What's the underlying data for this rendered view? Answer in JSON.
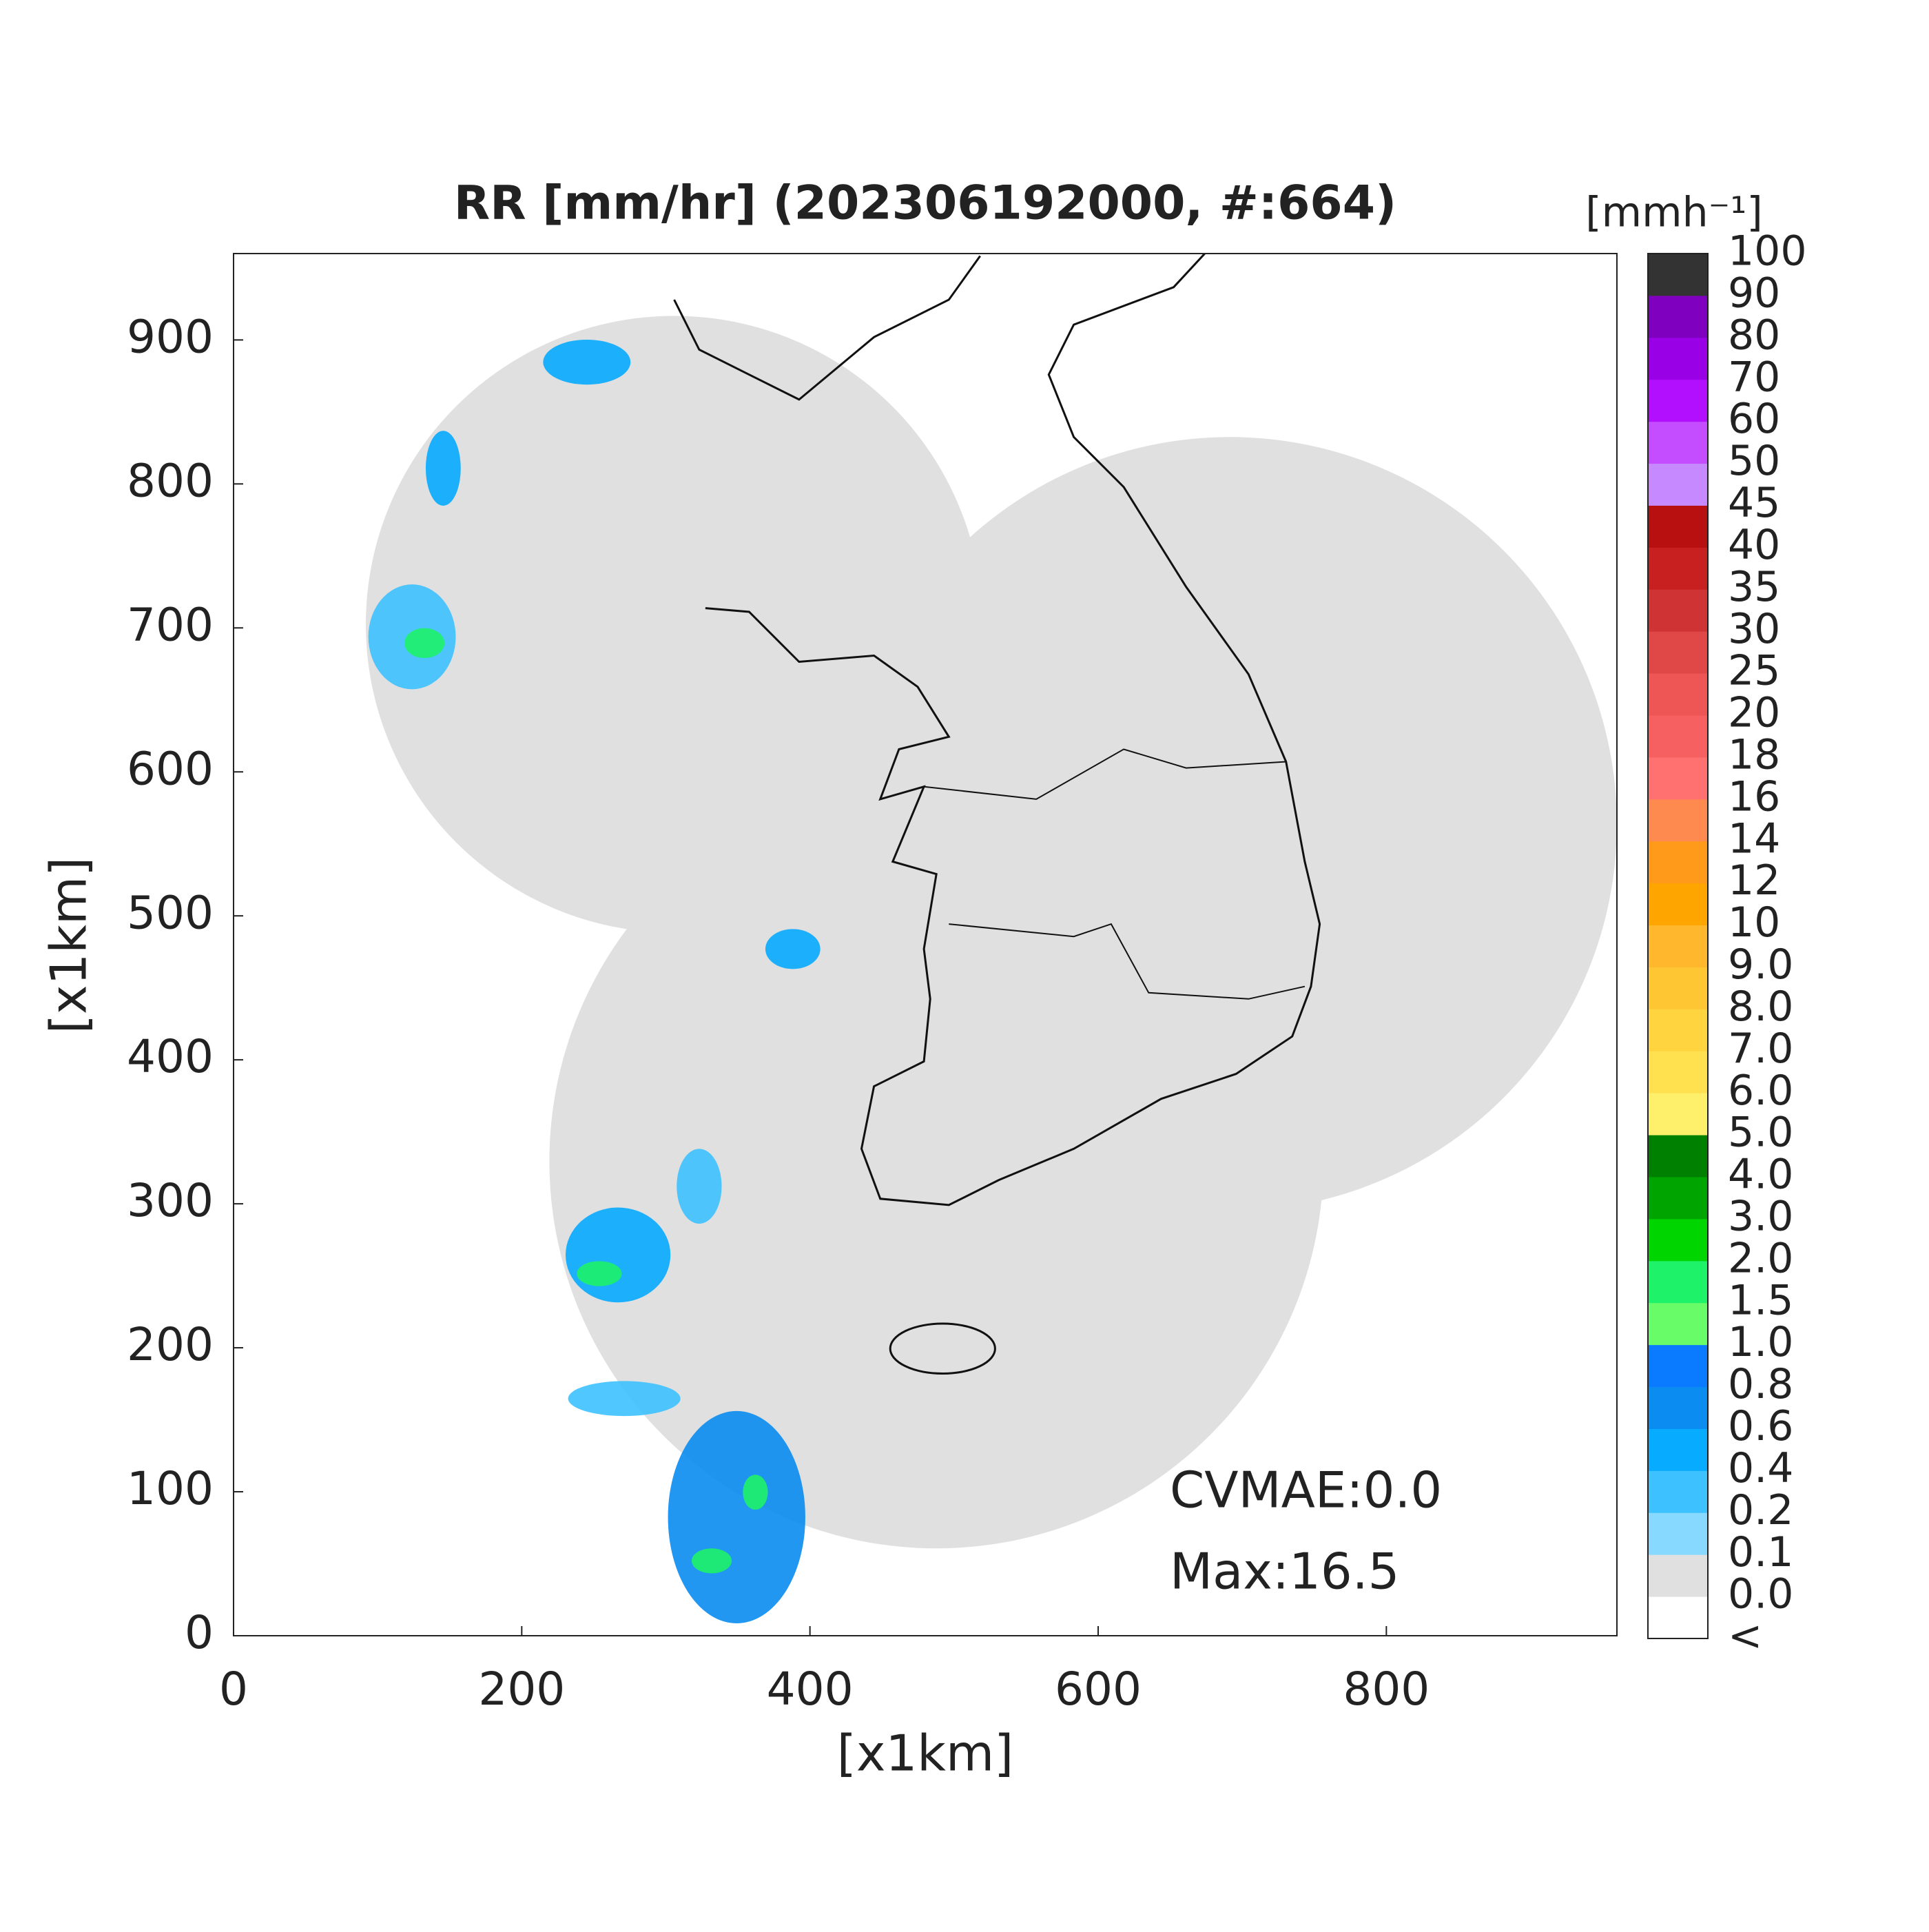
{
  "chart_data": {
    "type": "radar-map",
    "title": "RR [mm/hr] (202306192000, #:664)",
    "x_label": "[x1km]",
    "y_label": "[x1km]",
    "xlim": [
      0,
      960
    ],
    "ylim": [
      0,
      960
    ],
    "xticks": [
      0,
      200,
      400,
      600,
      800
    ],
    "yticks": [
      0,
      100,
      200,
      300,
      400,
      500,
      600,
      700,
      800,
      900
    ],
    "annotations": [
      "CVMAE:0.0",
      "Max:16.5"
    ],
    "colorbar": {
      "label": "[mmh⁻¹]",
      "labels": [
        "<",
        "0.0",
        "0.1",
        "0.2",
        "0.4",
        "0.6",
        "0.8",
        "1.0",
        "1.5",
        "2.0",
        "3.0",
        "4.0",
        "5.0",
        "6.0",
        "7.0",
        "8.0",
        "9.0",
        "10",
        "12",
        "14",
        "16",
        "18",
        "20",
        "25",
        "30",
        "35",
        "40",
        "45",
        "50",
        "60",
        "70",
        "80",
        "90",
        "100"
      ],
      "colors": [
        "#ffffff",
        "#e0e0e0",
        "#87d9ff",
        "#3ec1ff",
        "#07abff",
        "#0a8cf0",
        "#0a7aff",
        "#69fc69",
        "#1ef269",
        "#00d500",
        "#00a400",
        "#008000",
        "#fff06b",
        "#ffe14f",
        "#ffd43f",
        "#ffc633",
        "#ffb72d",
        "#ffa500",
        "#ff9a1a",
        "#ff8a50",
        "#ff7070",
        "#f66060",
        "#ee5555",
        "#e04848",
        "#d03333",
        "#c82020",
        "#b81010",
        "#c689ff",
        "#c34dff",
        "#b30fff",
        "#9900e6",
        "#7f00bf",
        "#333333"
      ]
    }
  }
}
